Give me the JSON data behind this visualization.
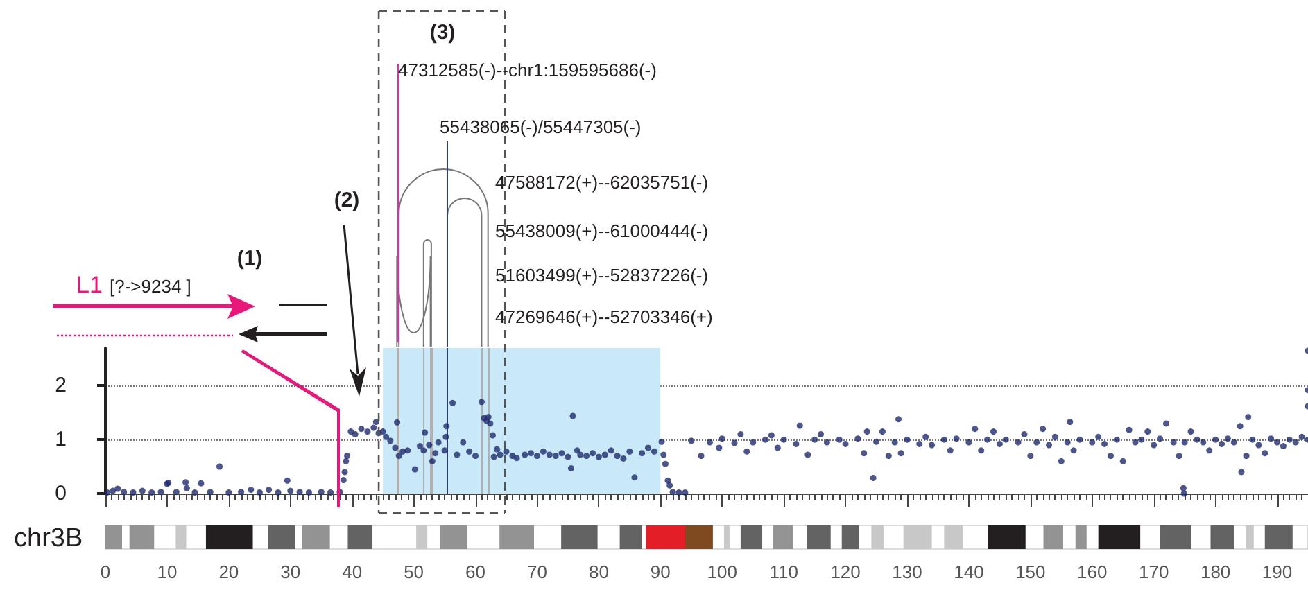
{
  "chart_data": {
    "type": "scatter",
    "x": [
      0.3,
      1.2,
      2,
      3,
      4.5,
      6,
      7.5,
      9,
      10,
      10.2,
      11.5,
      13,
      13.2,
      14.5,
      15.5,
      17,
      18.5,
      20,
      22,
      23.6,
      25,
      26.5,
      28,
      29.5,
      30,
      31.5,
      33,
      35,
      36.5,
      38,
      38.6,
      38.8,
      39,
      39.2,
      39.8,
      40.5,
      41.5,
      42.5,
      43.5,
      43.9,
      44.3,
      45,
      45.5,
      46.2,
      47,
      47.3,
      47.6,
      48.2,
      49,
      50.2,
      51,
      51.6,
      51.8,
      52.5,
      53,
      53.5,
      54,
      55,
      55.2,
      55.3,
      56.3,
      57,
      58,
      59,
      60,
      61,
      61.4,
      61.8,
      62.1,
      62.4,
      62.8,
      63,
      63.5,
      64,
      65,
      66,
      66.7,
      68,
      69,
      70,
      71,
      72,
      73,
      74,
      75,
      75.5,
      75.8,
      76.5,
      77,
      78,
      79,
      80,
      81,
      82,
      83,
      84,
      85,
      85.8,
      87,
      88,
      89,
      90.2,
      90.5,
      90.8,
      91.2,
      91.5,
      92,
      93,
      94,
      95,
      96.6,
      98,
      99.5,
      100,
      102,
      103,
      104,
      105,
      107,
      108,
      109,
      110,
      112,
      112.6,
      113.9,
      115,
      116,
      117,
      119,
      120,
      122,
      123,
      123.5,
      124.5,
      125,
      126,
      127,
      128,
      128.6,
      129,
      130,
      132,
      133,
      134,
      136,
      137,
      138,
      140,
      141,
      142,
      143,
      144,
      145,
      146,
      148,
      149,
      150,
      151,
      152,
      153,
      154,
      155,
      156,
      156.4,
      157,
      158,
      160,
      161,
      162,
      163,
      164,
      165,
      166,
      167,
      168,
      169,
      170,
      171,
      172,
      173.2,
      174.1,
      174.8,
      174.9,
      175,
      176,
      177,
      178,
      179,
      180,
      181,
      182,
      183,
      184,
      184.2,
      185,
      185.3,
      186,
      187,
      188,
      189,
      190,
      191,
      192,
      193,
      194,
      195,
      195,
      195,
      195
    ],
    "values": [
      0.02,
      0.05,
      0.09,
      0.03,
      0.02,
      0.05,
      0.02,
      0.03,
      0.18,
      0.2,
      0.03,
      0.21,
      0.1,
      0.02,
      0.19,
      0.03,
      0.5,
      0.02,
      0.03,
      0.07,
      0.02,
      0.07,
      0.02,
      0.24,
      0.05,
      0.03,
      0.02,
      0.03,
      0.02,
      0.03,
      0.25,
      0.4,
      0.6,
      0.7,
      1.15,
      1.1,
      1.2,
      1.15,
      1.22,
      1.33,
      1.12,
      1.15,
      1.05,
      0.98,
      0.85,
      1.32,
      0.7,
      0.78,
      0.8,
      0.45,
      0.88,
      0.8,
      1.13,
      0.9,
      0.6,
      0.75,
      0.95,
      0.8,
      1.05,
      1.25,
      1.68,
      0.72,
      0.95,
      0.78,
      0.7,
      1.7,
      1.4,
      1.35,
      1.42,
      1.3,
      1.08,
      0.68,
      0.82,
      0.72,
      0.78,
      0.7,
      0.66,
      0.72,
      0.75,
      0.7,
      0.78,
      0.72,
      0.7,
      0.75,
      0.68,
      0.47,
      1.44,
      0.8,
      0.72,
      0.7,
      0.75,
      0.68,
      0.72,
      0.8,
      0.7,
      0.65,
      0.78,
      0.3,
      0.75,
      0.85,
      0.78,
      0.96,
      0.72,
      0.55,
      0.24,
      0.15,
      0.03,
      0.02,
      0.02,
      0.98,
      0.7,
      0.95,
      0.85,
      1.02,
      0.94,
      1.1,
      0.78,
      0.95,
      1.0,
      1.08,
      0.85,
      1.0,
      0.92,
      1.26,
      0.72,
      1.0,
      1.1,
      0.95,
      1.0,
      0.92,
      1.02,
      0.75,
      1.15,
      0.29,
      0.96,
      1.15,
      0.7,
      0.95,
      1.38,
      0.75,
      1.0,
      0.92,
      1.05,
      0.9,
      1.0,
      0.8,
      1.02,
      0.95,
      1.2,
      0.8,
      1.0,
      1.15,
      0.92,
      1.0,
      0.95,
      1.1,
      0.7,
      0.95,
      1.2,
      0.9,
      1.05,
      0.6,
      0.95,
      1.33,
      0.8,
      1.0,
      0.95,
      1.05,
      0.92,
      0.7,
      1.0,
      0.6,
      1.18,
      0.95,
      1.0,
      1.15,
      0.9,
      1.02,
      1.3,
      0.95,
      0.7,
      0.1,
      0.0,
      0.95,
      1.15,
      1.0,
      0.95,
      0.8,
      1.0,
      0.92,
      1.02,
      0.95,
      1.25,
      0.4,
      0.7,
      1.42,
      1.0,
      0.9,
      0.75,
      1.02,
      0.95,
      0.88,
      1.0,
      0.95,
      1.05,
      2.65,
      1.92,
      1.62,
      1.0
    ],
    "color": "#1f2a6e",
    "marker": "circle",
    "xlim": [
      0,
      195
    ],
    "xticks": [
      0,
      10,
      20,
      30,
      40,
      50,
      60,
      70,
      80,
      90,
      100,
      110,
      120,
      130,
      140,
      150,
      160,
      170,
      180,
      190
    ],
    "ylim": [
      0,
      2.7
    ],
    "yticks": [
      0,
      1,
      2
    ],
    "grid": "y",
    "ref_lines": [
      {
        "axis": "x",
        "value": 47.27,
        "color": "#b0b0b0"
      },
      {
        "axis": "x",
        "value": 47.59,
        "color": "#b0b0b0"
      },
      {
        "axis": "x",
        "value": 51.6,
        "color": "#b0b0b0"
      },
      {
        "axis": "x",
        "value": 52.7,
        "color": "#b0b0b0"
      },
      {
        "axis": "x",
        "value": 52.84,
        "color": "#b0b0b0"
      },
      {
        "axis": "x",
        "value": 55.44,
        "color": "#2b3a8c"
      },
      {
        "axis": "x",
        "value": 61.0,
        "color": "#b0b0b0"
      },
      {
        "axis": "x",
        "value": 62.04,
        "color": "#b0b0b0"
      }
    ],
    "bands": [
      {
        "axis": "x",
        "from": 45,
        "to": 90,
        "color": "#c9e8f8"
      }
    ],
    "annotations": [
      "(1)",
      "(2)",
      "(3)",
      "L1",
      "[?->9234 ]",
      "47312585(-)--chr1:159595686(-)",
      "55438065(-)/55447305(-)",
      "47588172(+)--62035751(-)",
      "55438009(+)--61000444(-)",
      "51603499(+)--52837226(-)",
      "47269646(+)--52703346(+)",
      "chr3B"
    ]
  }
}
